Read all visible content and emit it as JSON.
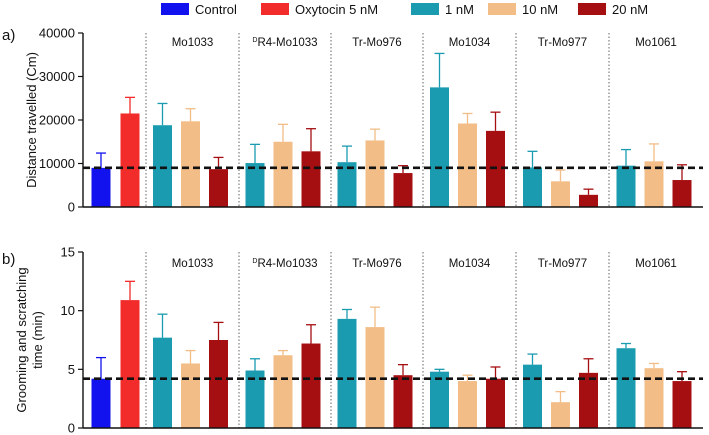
{
  "legend": [
    {
      "name": "Control",
      "color": "#1212ee"
    },
    {
      "name": "Oxytocin 5 nM",
      "color": "#f22b2b"
    },
    {
      "name": "1 nM",
      "color": "#1b9bb0"
    },
    {
      "name": "10 nM",
      "color": "#f2bd86"
    },
    {
      "name": "20 nM",
      "color": "#a50f12"
    }
  ],
  "colors": {
    "axis": "#111111",
    "reference_line": "#111111",
    "separator": "#555555"
  },
  "chart_data": [
    {
      "type": "bar",
      "panel_label": "a)",
      "title": "",
      "xlabel": "",
      "ylabel": "Distance travelled (Cm)",
      "ylim": [
        0,
        40000
      ],
      "yticks": [
        0,
        10000,
        20000,
        30000,
        40000
      ],
      "reference_line": 9000,
      "controls": [
        {
          "name": "Control",
          "value": 9000,
          "error": 3400
        },
        {
          "name": "Oxytocin 5 nM",
          "value": 21500,
          "error": 3700
        }
      ],
      "groups": [
        "Mo1033",
        "DR4-Mo1033",
        "Tr-Mo976",
        "Mo1034",
        "Tr-Mo977",
        "Mo1061"
      ],
      "series": [
        {
          "name": "1 nM",
          "values": [
            18800,
            10100,
            10300,
            27500,
            9100,
            9500
          ],
          "errors": [
            5000,
            4300,
            3700,
            7800,
            3700,
            3700
          ]
        },
        {
          "name": "10 nM",
          "values": [
            19700,
            15000,
            15300,
            19200,
            5900,
            10500
          ],
          "errors": [
            2900,
            4000,
            2600,
            2300,
            2600,
            4000
          ]
        },
        {
          "name": "20 nM",
          "values": [
            8700,
            12800,
            7800,
            17500,
            2800,
            6200
          ],
          "errors": [
            2700,
            5200,
            1700,
            4300,
            1300,
            3500
          ]
        }
      ]
    },
    {
      "type": "bar",
      "panel_label": "b)",
      "title": "",
      "xlabel": "",
      "ylabel": "Grooming and scratching time (min)",
      "ylim": [
        0,
        15
      ],
      "yticks": [
        0,
        5,
        10,
        15
      ],
      "reference_line": 4.2,
      "controls": [
        {
          "name": "Control",
          "value": 4.2,
          "error": 1.8
        },
        {
          "name": "Oxytocin 5 nM",
          "value": 10.9,
          "error": 1.6
        }
      ],
      "groups": [
        "Mo1033",
        "DR4-Mo1033",
        "Tr-Mo976",
        "Mo1034",
        "Tr-Mo977",
        "Mo1061"
      ],
      "series": [
        {
          "name": "1 nM",
          "values": [
            7.7,
            4.9,
            9.3,
            4.8,
            5.4,
            6.8
          ],
          "errors": [
            2.0,
            1.0,
            0.8,
            0.2,
            0.9,
            0.4
          ]
        },
        {
          "name": "10 nM",
          "values": [
            5.5,
            6.2,
            8.6,
            4.0,
            2.2,
            5.1
          ],
          "errors": [
            1.1,
            0.4,
            1.7,
            0.5,
            0.9,
            0.4
          ]
        },
        {
          "name": "20 nM",
          "values": [
            7.5,
            7.2,
            4.5,
            4.2,
            4.7,
            4.0
          ],
          "errors": [
            1.5,
            1.6,
            0.9,
            1.0,
            1.2,
            0.8
          ]
        }
      ]
    }
  ]
}
